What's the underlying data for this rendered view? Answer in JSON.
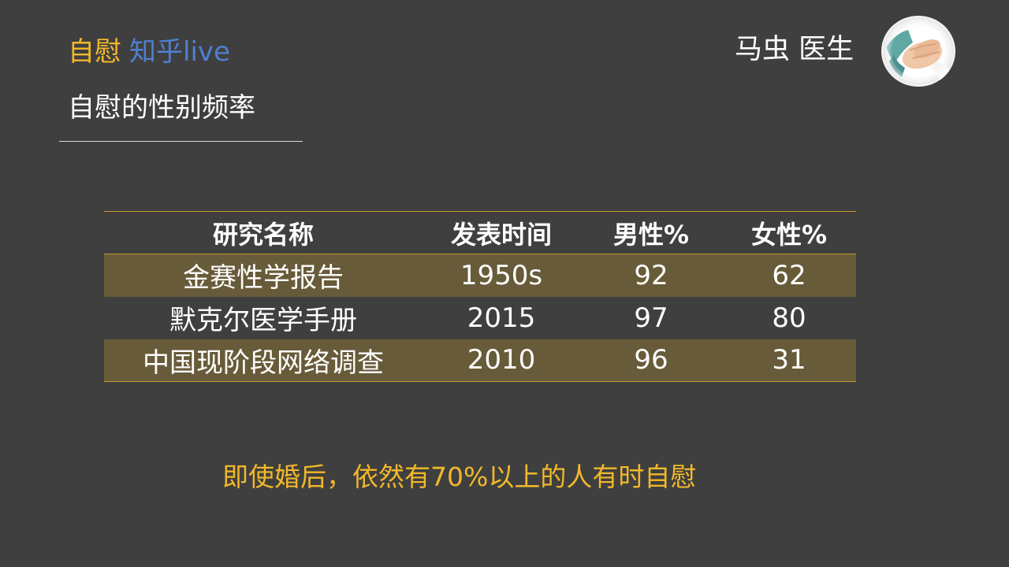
{
  "header": {
    "brand_primary": "自慰",
    "brand_secondary": "知乎live",
    "subtitle": "自慰的性别频率",
    "author": "马虫  医生"
  },
  "colors": {
    "background": "#3f3f3f",
    "accent_gold": "#f2b82a",
    "accent_blue": "#4f7fd0",
    "row_band": "#685b39",
    "table_rule": "#c49a2a"
  },
  "table": {
    "columns": [
      "研究名称",
      "发表时间",
      "男性%",
      "女性%"
    ],
    "rows": [
      [
        "金赛性学报告",
        "1950s",
        "92",
        "62"
      ],
      [
        "默克尔医学手册",
        "2015",
        "97",
        "80"
      ],
      [
        "中国现阶段网络调查",
        "2010",
        "96",
        "31"
      ]
    ]
  },
  "note": "即使婚后，依然有70%以上的人有时自慰",
  "icons": {
    "avatar": "doctor-hands-photo-icon"
  }
}
